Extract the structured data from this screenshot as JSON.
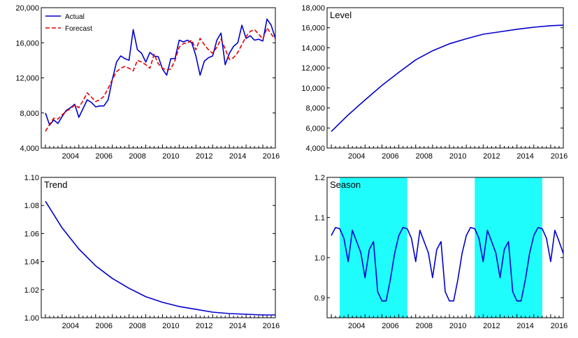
{
  "chart_data": [
    {
      "type": "line",
      "title": "",
      "xlim": [
        2002.75,
        2016.75
      ],
      "ylim": [
        4000,
        20000
      ],
      "yticks": [
        "4,000",
        "8,000",
        "12,000",
        "16,000",
        "20,000"
      ],
      "xticks": [
        "2004",
        "2006",
        "2008",
        "2010",
        "2012",
        "2014",
        "2016"
      ],
      "legend_position": "top-left",
      "series": [
        {
          "name": "Actual",
          "color": "#0000cc",
          "style": "solid",
          "x": [
            2003.0,
            2003.25,
            2003.5,
            2003.75,
            2004.0,
            2004.25,
            2004.5,
            2004.75,
            2005.0,
            2005.25,
            2005.5,
            2005.75,
            2006.0,
            2006.25,
            2006.5,
            2006.75,
            2007.0,
            2007.25,
            2007.5,
            2007.75,
            2008.0,
            2008.25,
            2008.5,
            2008.75,
            2009.0,
            2009.25,
            2009.5,
            2009.75,
            2010.0,
            2010.25,
            2010.5,
            2010.75,
            2011.0,
            2011.25,
            2011.5,
            2011.75,
            2012.0,
            2012.25,
            2012.5,
            2012.75,
            2013.0,
            2013.25,
            2013.5,
            2013.75,
            2014.0,
            2014.25,
            2014.5,
            2014.75,
            2015.0,
            2015.25,
            2015.5,
            2015.75,
            2016.0,
            2016.25,
            2016.5,
            2016.75
          ],
          "values": [
            8000,
            6600,
            7200,
            6800,
            7600,
            8300,
            8600,
            9000,
            7500,
            8500,
            9500,
            9200,
            8700,
            8800,
            8800,
            9500,
            11800,
            13800,
            14500,
            14200,
            14000,
            17500,
            15200,
            14800,
            13800,
            14900,
            14500,
            14400,
            13000,
            12300,
            14200,
            14200,
            16300,
            16100,
            16300,
            16000,
            14500,
            12300,
            13900,
            14300,
            14500,
            16300,
            17100,
            13500,
            14800,
            15600,
            16000,
            18000,
            16500,
            16800,
            16300,
            16400,
            16200,
            18700,
            18000,
            16500
          ]
        },
        {
          "name": "Forecast",
          "color": "#e00000",
          "style": "dashed",
          "x": [
            2003.0,
            2003.25,
            2003.5,
            2003.75,
            2004.0,
            2004.25,
            2004.5,
            2004.75,
            2005.0,
            2005.25,
            2005.5,
            2005.75,
            2006.0,
            2006.25,
            2006.5,
            2006.75,
            2007.0,
            2007.25,
            2007.5,
            2007.75,
            2008.0,
            2008.25,
            2008.5,
            2008.75,
            2009.0,
            2009.25,
            2009.5,
            2009.75,
            2010.0,
            2010.25,
            2010.5,
            2010.75,
            2011.0,
            2011.25,
            2011.5,
            2011.75,
            2012.0,
            2012.25,
            2012.5,
            2012.75,
            2013.0,
            2013.25,
            2013.5,
            2013.75,
            2014.0,
            2014.25,
            2014.5,
            2014.75,
            2015.0,
            2015.25,
            2015.5,
            2015.75,
            2016.0,
            2016.25,
            2016.5,
            2016.75
          ],
          "values": [
            5900,
            6700,
            7400,
            7300,
            7800,
            8200,
            8500,
            8900,
            8600,
            9400,
            10300,
            9800,
            9300,
            9500,
            9900,
            10800,
            11800,
            12700,
            13100,
            13300,
            13100,
            12800,
            14000,
            13800,
            13500,
            13100,
            14700,
            13600,
            13100,
            12900,
            13000,
            14000,
            15500,
            15900,
            16000,
            16300,
            15200,
            16500,
            15800,
            15200,
            14800,
            15500,
            16400,
            15300,
            14100,
            14300,
            14900,
            15800,
            16700,
            17300,
            17500,
            17000,
            16400,
            17700,
            17000,
            16400
          ]
        }
      ]
    },
    {
      "type": "line",
      "title": "Level",
      "xlim": [
        2002.75,
        2016.75
      ],
      "ylim": [
        4000,
        18000
      ],
      "yticks": [
        "4,000",
        "6,000",
        "8,000",
        "10,000",
        "12,000",
        "14,000",
        "16,000",
        "18,000"
      ],
      "xticks": [
        "2004",
        "2006",
        "2008",
        "2010",
        "2012",
        "2014",
        "2016"
      ],
      "series": [
        {
          "color": "#0000cc",
          "style": "solid",
          "x": [
            2003.0,
            2004.0,
            2005.0,
            2006.0,
            2007.0,
            2008.0,
            2009.0,
            2010.0,
            2011.0,
            2012.0,
            2013.0,
            2014.0,
            2015.0,
            2016.0,
            2016.75
          ],
          "values": [
            5650,
            7300,
            8800,
            10250,
            11550,
            12800,
            13700,
            14400,
            14900,
            15350,
            15600,
            15850,
            16050,
            16200,
            16250
          ]
        }
      ]
    },
    {
      "type": "line",
      "title": "Trend",
      "xlim": [
        2002.75,
        2016.75
      ],
      "ylim": [
        1.0,
        1.1
      ],
      "yticks": [
        "1.00",
        "1.02",
        "1.04",
        "1.06",
        "1.08",
        "1.10"
      ],
      "xticks": [
        "2004",
        "2006",
        "2008",
        "2010",
        "2012",
        "2014",
        "2016"
      ],
      "series": [
        {
          "color": "#0000cc",
          "style": "solid",
          "x": [
            2003.0,
            2004.0,
            2005.0,
            2006.0,
            2007.0,
            2008.0,
            2009.0,
            2010.0,
            2011.0,
            2012.0,
            2013.0,
            2014.0,
            2015.0,
            2016.0,
            2016.75
          ],
          "values": [
            1.083,
            1.064,
            1.049,
            1.037,
            1.028,
            1.021,
            1.015,
            1.011,
            1.008,
            1.006,
            1.004,
            1.003,
            1.0025,
            1.002,
            1.002
          ]
        }
      ]
    },
    {
      "type": "line",
      "title": "Season",
      "xlim": [
        2002.75,
        2016.75
      ],
      "ylim": [
        0.85,
        1.2
      ],
      "yticks": [
        "0.9",
        "1.0",
        "1.1",
        "1.2"
      ],
      "xticks": [
        "2004",
        "2006",
        "2008",
        "2010",
        "2012",
        "2014",
        "2016"
      ],
      "shaded_regions": [
        [
          2003.5,
          2007.5
        ],
        [
          2011.5,
          2015.5
        ]
      ],
      "shade_color": "#1ffcfc",
      "series": [
        {
          "color": "#0000cc",
          "style": "solid",
          "x": [
            2003.0,
            2003.25,
            2003.5,
            2003.75,
            2004.0,
            2004.25,
            2004.5,
            2004.75,
            2005.0,
            2005.25,
            2005.5,
            2005.75,
            2006.0,
            2006.25,
            2006.5,
            2006.75,
            2007.0,
            2007.25,
            2007.5,
            2007.75,
            2008.0,
            2008.25,
            2008.5,
            2008.75,
            2009.0,
            2009.25,
            2009.5,
            2009.75,
            2010.0,
            2010.25,
            2010.5,
            2010.75,
            2011.0,
            2011.25,
            2011.5,
            2011.75,
            2012.0,
            2012.25,
            2012.5,
            2012.75,
            2013.0,
            2013.25,
            2013.5,
            2013.75,
            2014.0,
            2014.25,
            2014.5,
            2014.75,
            2015.0,
            2015.25,
            2015.5,
            2015.75,
            2016.0,
            2016.25,
            2016.5,
            2016.75
          ],
          "values": [
            1.055,
            1.075,
            1.072,
            1.048,
            0.99,
            1.068,
            1.04,
            1.012,
            0.95,
            1.02,
            1.04,
            0.915,
            0.892,
            0.892,
            0.945,
            1.01,
            1.055,
            1.075,
            1.072,
            1.048,
            0.99,
            1.068,
            1.04,
            1.012,
            0.95,
            1.02,
            1.04,
            0.915,
            0.892,
            0.892,
            0.945,
            1.01,
            1.055,
            1.075,
            1.072,
            1.048,
            0.99,
            1.068,
            1.04,
            1.012,
            0.95,
            1.02,
            1.04,
            0.915,
            0.892,
            0.892,
            0.945,
            1.01,
            1.055,
            1.075,
            1.072,
            1.048,
            0.99,
            1.068,
            1.04,
            1.01
          ]
        }
      ]
    }
  ]
}
